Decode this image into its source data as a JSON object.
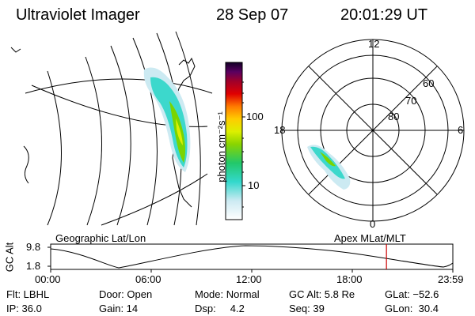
{
  "header": {
    "instrument": "Ultraviolet Imager",
    "date": "28 Sep 07",
    "time": "20:01:29 UT"
  },
  "colorbar": {
    "unit": "photon cm⁻²s⁻¹",
    "ticks": [
      "100",
      "10"
    ]
  },
  "polar": {
    "mlt_labels": [
      "12",
      "18",
      "6",
      "0"
    ],
    "lat_labels": [
      "60",
      "70",
      "80"
    ]
  },
  "map_labels": {
    "left": "Geographic Lat/Lon",
    "right": "Apex  MLat/MLT"
  },
  "altitude_plot": {
    "ylabel": "GC Alt",
    "y_ticks": [
      "9.8",
      "1.8"
    ],
    "x_ticks": [
      "00:00",
      "06:00",
      "12:00",
      "18:00",
      "23:59"
    ],
    "marker_color": "#cc0000",
    "marker_time": "20:01:29"
  },
  "info": {
    "row1": {
      "flt": "Flt: LBHL",
      "door": "Door: Open",
      "mode": "Mode: Normal",
      "gcalt": "GC Alt: 5.8 Re",
      "glat": "GLat: −52.6"
    },
    "row2": {
      "ip": "IP: 36.0",
      "gain": "Gain: 14",
      "dsp": "Dsp:     4.2",
      "seq": "Seq: 39",
      "glon": "GLon:  30.4"
    }
  }
}
